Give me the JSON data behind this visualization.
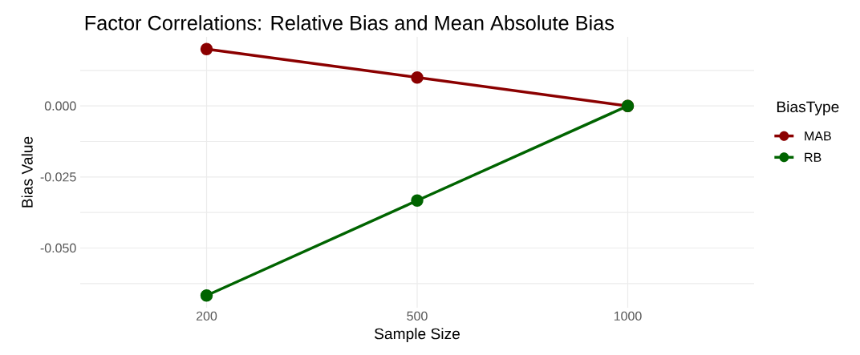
{
  "chart_data": {
    "type": "line",
    "title": "Factor Correlations: Relative Bias and Mean Absolute Bias",
    "xlabel": "Sample Size",
    "ylabel": "Bias Value",
    "legend_title": "BiasType",
    "categories": [
      "200",
      "500",
      "1000"
    ],
    "series": [
      {
        "name": "MAB",
        "color": "#8b0000",
        "values": [
          0.02,
          0.01,
          0.0
        ]
      },
      {
        "name": "RB",
        "color": "#006400",
        "values": [
          -0.0667,
          -0.0333,
          0.0
        ]
      }
    ],
    "ylim": [
      -0.071,
      0.0243
    ],
    "yticks": [
      {
        "value": -0.0625,
        "label": null
      },
      {
        "value": -0.05,
        "label": "-0.050"
      },
      {
        "value": -0.0375,
        "label": null
      },
      {
        "value": -0.025,
        "label": "-0.025"
      },
      {
        "value": -0.0125,
        "label": null
      },
      {
        "value": 0,
        "label": "0.000"
      },
      {
        "value": 0.0125,
        "label": null
      }
    ],
    "grid": true,
    "legend": "right",
    "marker": "circle",
    "line_style": "solid"
  }
}
